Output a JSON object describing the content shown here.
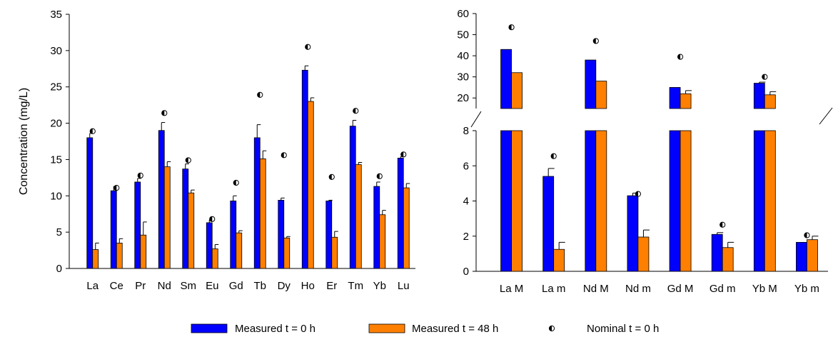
{
  "chart_data": [
    {
      "type": "bar",
      "ylabel": "Concentration (mg/L)",
      "ylim": [
        0,
        35
      ],
      "yticks": [
        0,
        5,
        10,
        15,
        20,
        25,
        30,
        35
      ],
      "categories": [
        "La",
        "Ce",
        "Pr",
        "Nd",
        "Sm",
        "Eu",
        "Gd",
        "Tb",
        "Dy",
        "Ho",
        "Er",
        "Tm",
        "Yb",
        "Lu"
      ],
      "series": [
        {
          "name": "Measured t = 0 h",
          "color": "#0000ff",
          "values": [
            18.0,
            10.7,
            11.9,
            19.0,
            13.7,
            6.3,
            9.3,
            18.0,
            9.4,
            27.3,
            9.3,
            19.6,
            11.3,
            15.2
          ],
          "errors": [
            0.6,
            0.6,
            0.5,
            1.1,
            0.7,
            0.4,
            0.7,
            1.8,
            0.3,
            0.6,
            0.1,
            0.8,
            0.6,
            0.2
          ]
        },
        {
          "name": "Measured t = 48 h",
          "color": "#ff8000",
          "values": [
            2.6,
            3.5,
            4.6,
            14.0,
            10.4,
            2.7,
            4.9,
            15.1,
            4.2,
            23.0,
            4.3,
            14.3,
            7.4,
            11.1
          ],
          "errors": [
            0.9,
            0.6,
            1.8,
            0.7,
            0.4,
            0.6,
            0.3,
            1.1,
            0.2,
            0.5,
            0.8,
            0.3,
            0.6,
            0.6
          ]
        },
        {
          "name": "Nominal t = 0 h",
          "marker": "half-filled-circle",
          "values": [
            18.9,
            11.1,
            12.8,
            21.4,
            14.9,
            6.8,
            11.8,
            23.9,
            15.6,
            30.5,
            12.6,
            21.7,
            12.7,
            15.7
          ]
        }
      ]
    },
    {
      "type": "bar",
      "broken_axis": true,
      "ylim_lower": [
        0,
        8
      ],
      "ylim_upper": [
        15,
        60
      ],
      "yticks_lower": [
        0,
        2,
        4,
        6,
        8
      ],
      "yticks_upper": [
        20,
        30,
        40,
        50,
        60
      ],
      "categories": [
        "La M",
        "La m",
        "Nd M",
        "Nd m",
        "Gd M",
        "Gd m",
        "Yb M",
        "Yb m"
      ],
      "series": [
        {
          "name": "Measured t = 0 h",
          "color": "#0000ff",
          "values": [
            43,
            5.4,
            38,
            4.3,
            25,
            2.1,
            27,
            1.65
          ],
          "errors": [
            null,
            0.45,
            null,
            0.15,
            null,
            0.1,
            0.5,
            null
          ]
        },
        {
          "name": "Measured t = 48 h",
          "color": "#ff8000",
          "values": [
            32,
            1.25,
            28,
            1.95,
            22,
            1.35,
            21.5,
            1.8
          ],
          "errors": [
            null,
            0.4,
            null,
            0.4,
            1.5,
            0.3,
            1.5,
            0.2
          ]
        },
        {
          "name": "Nominal t = 0 h",
          "marker": "half-filled-circle",
          "values": [
            53.5,
            6.55,
            47,
            4.4,
            39.5,
            2.65,
            30,
            2.05
          ]
        }
      ]
    }
  ],
  "legend": {
    "items": [
      {
        "label": "Measured t = 0 h",
        "color": "#0000ff",
        "kind": "bar"
      },
      {
        "label": "Measured t = 48 h",
        "color": "#ff8000",
        "kind": "bar"
      },
      {
        "label": "Nominal t = 0 h",
        "kind": "marker"
      }
    ]
  }
}
